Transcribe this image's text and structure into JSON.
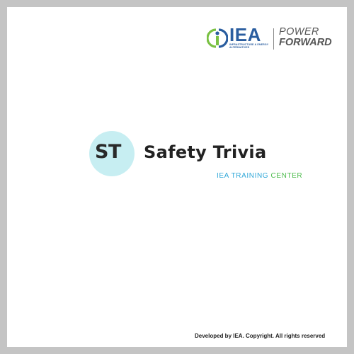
{
  "header_logo": {
    "wordmark": "IEA",
    "subtitle": "INFRASTRUCTURE & ENERGY ALTERNATIVES",
    "tagline_line1": "POWER",
    "tagline_line2": "FORWARD"
  },
  "brand": {
    "badge_text": "ST",
    "title": "Safety Trivia",
    "subtitle_part1": "IEA TRAINING ",
    "subtitle_part2": "CENTER"
  },
  "footer": {
    "text": "Developed by IEA. Copyright. All rights reserved"
  },
  "colors": {
    "frame": "#c4c4c4",
    "card": "#ffffff",
    "iea_blue": "#2a5d9f",
    "iea_green": "#7ac143",
    "badge_bg": "#c7eef2",
    "subtitle_blue": "#2fa7d8",
    "subtitle_green": "#4cbb4c"
  }
}
